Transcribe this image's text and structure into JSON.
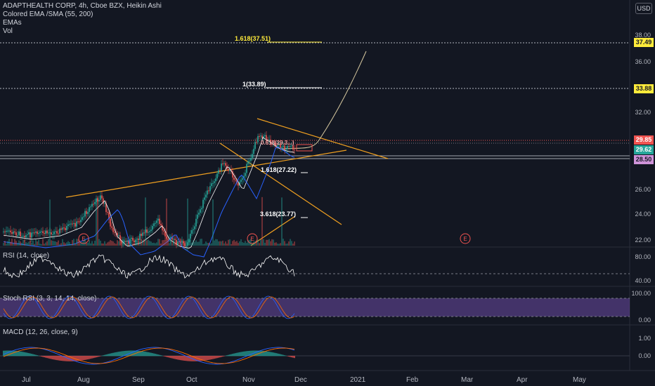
{
  "header": {
    "symbol_line": "ADAPTHEALTH CORP, 4h, Cboe BZX, Heikin Ashi",
    "indicators": [
      "Colored EMA /SMA (55, 200)",
      "EMAs",
      "Vol"
    ],
    "currency": "USD"
  },
  "price_tags": {
    "t1": "37.49",
    "t2": "33.88",
    "t3": "29.85",
    "t4": "29.62",
    "t5": "28.50"
  },
  "price_axis": [
    "38.00",
    "36.00",
    "32.00",
    "26.00",
    "24.00",
    "22.00"
  ],
  "fib_labels": {
    "f1618_top": "1.618(37.51)",
    "f1": "1(33.89)",
    "f0618": "0.618(29.3...)",
    "f1618_low": "1.618(27.22)",
    "f3618": "3.618(23.77)"
  },
  "earnings_marker": "E",
  "time_axis": [
    "Jul",
    "Aug",
    "Sep",
    "Oct",
    "Nov",
    "Dec",
    "2021",
    "Feb",
    "Mar",
    "Apr",
    "May"
  ],
  "panes": {
    "rsi": {
      "title": "RSI (14, close)",
      "axis": [
        "80.00",
        "40.00"
      ]
    },
    "stoch": {
      "title": "Stoch RSI (3, 3, 14, 14, close)",
      "axis": [
        "100.00",
        "0.00"
      ]
    },
    "macd": {
      "title": "MACD (12, 26, close, 9)",
      "axis": [
        "1.00",
        "0.00"
      ]
    }
  },
  "colors": {
    "bg": "#131722",
    "up": "#26a69a",
    "down": "#ef5350",
    "trend": "#f0a020",
    "fib": "#ffeb3b",
    "ema_fast": "#ffffff",
    "ema_slow": "#2962ff",
    "rsi": "#ffffff",
    "stoch_k": "#2962ff",
    "stoch_d": "#ff6d00",
    "stoch_band": "#7e57c2",
    "macd": "#2962ff",
    "signal": "#ff6d00"
  }
}
